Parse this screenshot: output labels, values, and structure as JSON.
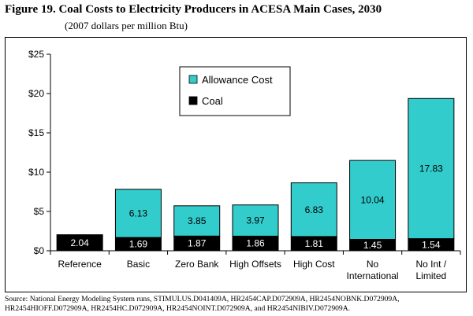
{
  "figure": {
    "title": "Figure 19.  Coal Costs to Electricity Producers in ACESA Main Cases, 2030",
    "subtitle": "(2007 dollars per million Btu)",
    "source": "Source:  National Energy Modeling System runs, STIMULUS.D041409A, HR2454CAP.D072909A, HR2454NOBNK.D072909A, HR2454HIOFF.D072909A, HR2454HC.D072909A, HR2454NOINT.D072909A, and HR2454NIBIV.D072909A."
  },
  "colors": {
    "allowance": "#33CCCC",
    "coal": "#000000",
    "axis": "#000000",
    "label_on_coal": "#ffffff",
    "label_on_allowance": "#000000"
  },
  "chart_data": {
    "type": "bar",
    "stacked": true,
    "title": "Coal Costs to Electricity Producers in ACESA Main Cases, 2030",
    "xlabel": "",
    "ylabel": "2007 dollars per million Btu",
    "ylim": [
      0,
      25
    ],
    "yticks": [
      0,
      5,
      10,
      15,
      20,
      25
    ],
    "ytick_labels": [
      "$0",
      "$5",
      "$10",
      "$15",
      "$20",
      "$25"
    ],
    "grid": false,
    "legend_position": "top-left",
    "categories": [
      [
        "Reference"
      ],
      [
        "Basic"
      ],
      [
        "Zero Bank"
      ],
      [
        "High Offsets"
      ],
      [
        "High Cost"
      ],
      [
        "No",
        "International"
      ],
      [
        "No Int /",
        "Limited"
      ]
    ],
    "series": [
      {
        "name": "Coal",
        "key": "coal",
        "values": [
          2.04,
          1.69,
          1.87,
          1.86,
          1.81,
          1.45,
          1.54
        ],
        "labels": [
          "2.04",
          "1.69",
          "1.87",
          "1.86",
          "1.81",
          "1.45",
          "1.54"
        ]
      },
      {
        "name": "Allowance Cost",
        "key": "allowance",
        "values": [
          0,
          6.13,
          3.85,
          3.97,
          6.83,
          10.04,
          17.83
        ],
        "labels": [
          "",
          "6.13",
          "3.85",
          "3.97",
          "6.83",
          "10.04",
          "17.83"
        ]
      }
    ]
  }
}
